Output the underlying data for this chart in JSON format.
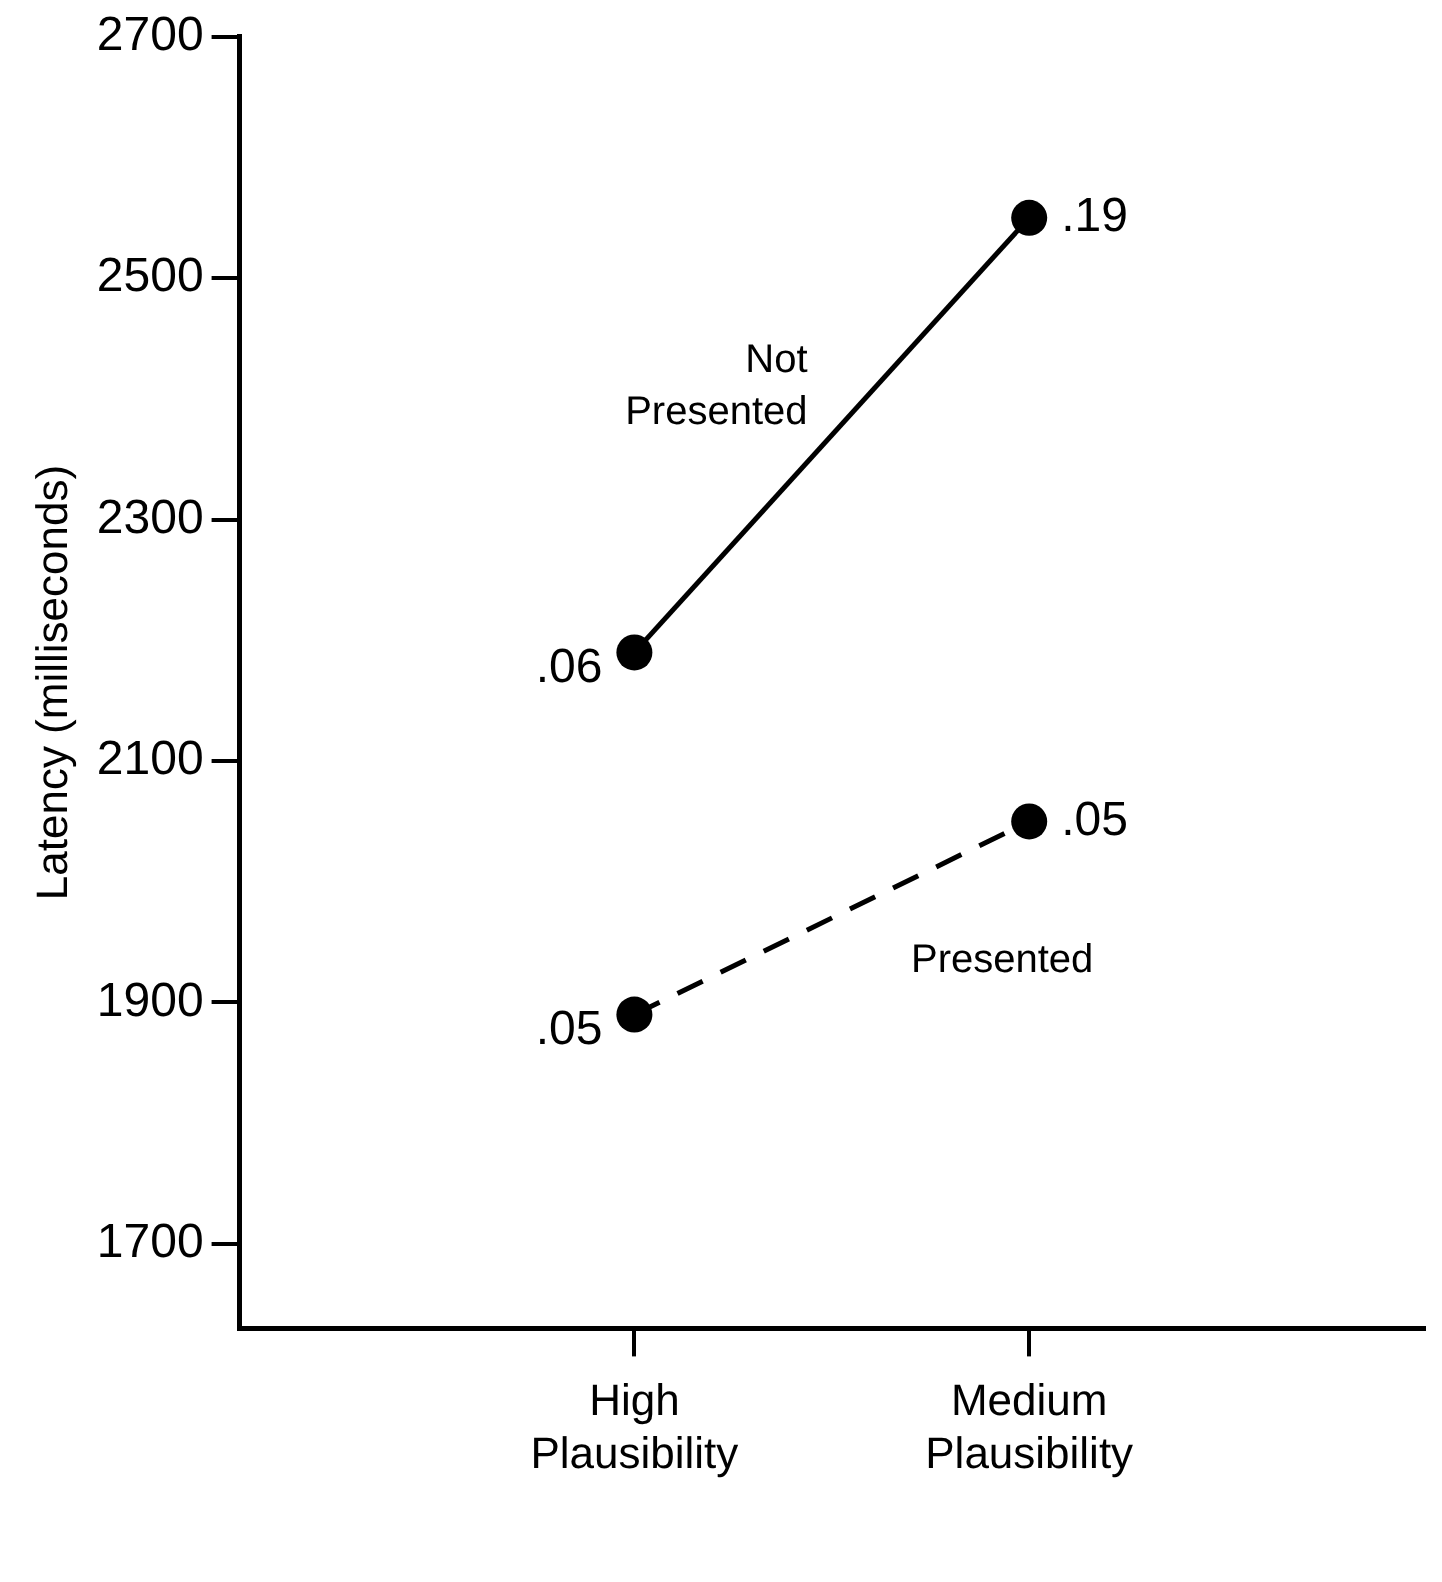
{
  "chart_data": {
    "type": "line",
    "ylabel": "Latency (milliseconds)",
    "categories": [
      "High Plausibility",
      "Medium Plausibility"
    ],
    "ylim": [
      1630,
      2700
    ],
    "yticks": [
      1700,
      1900,
      2100,
      2300,
      2500,
      2700
    ],
    "grid": false,
    "legend": false,
    "marker": "circle",
    "series": [
      {
        "name": "Not Presented",
        "color": "#000000",
        "values": [
          2190,
          2550
        ],
        "line_style": "solid"
      },
      {
        "name": "Presented",
        "color": "#000000",
        "values": [
          1890,
          2050
        ],
        "line_style": "dashed"
      }
    ],
    "annotations": [
      {
        "text": ".06",
        "x": "High Plausibility",
        "y": 2190
      },
      {
        "text": ".19",
        "x": "Medium Plausibility",
        "y": 2550
      },
      {
        "text": ".05",
        "x": "High Plausibility",
        "y": 1890
      },
      {
        "text": ".05",
        "x": "Medium Plausibility",
        "y": 2050
      }
    ]
  }
}
